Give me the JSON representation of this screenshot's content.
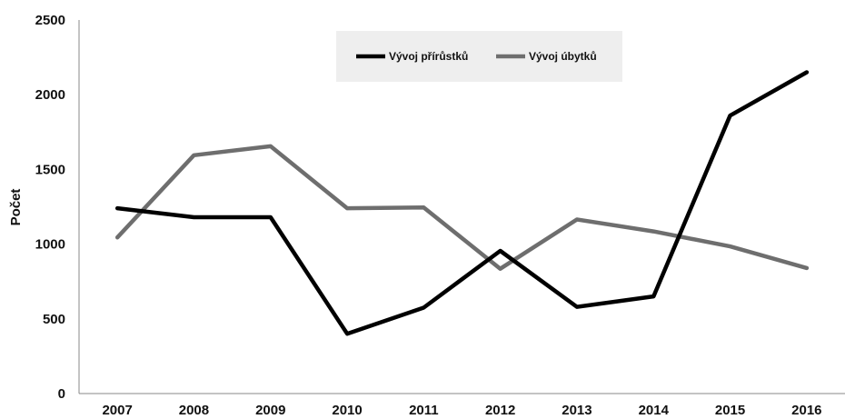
{
  "chart_data": {
    "type": "line",
    "title": "",
    "xlabel": "",
    "ylabel": "Počet",
    "categories": [
      "2007",
      "2008",
      "2009",
      "2010",
      "2011",
      "2012",
      "2013",
      "2014",
      "2015",
      "2016"
    ],
    "yticks": [
      "0",
      "500",
      "1000",
      "1500",
      "2000",
      "2500"
    ],
    "ylim": [
      0,
      2500
    ],
    "grid": false,
    "legend": "top-center",
    "series": [
      {
        "name": "Vývoj přírůstků",
        "color": "#000000",
        "values": [
          1240,
          1180,
          1180,
          400,
          575,
          955,
          580,
          650,
          1860,
          2150
        ]
      },
      {
        "name": "Vývoj úbytků",
        "color": "#6e6e6e",
        "values": [
          1045,
          1595,
          1655,
          1240,
          1245,
          835,
          1165,
          1085,
          985,
          840
        ]
      }
    ]
  }
}
